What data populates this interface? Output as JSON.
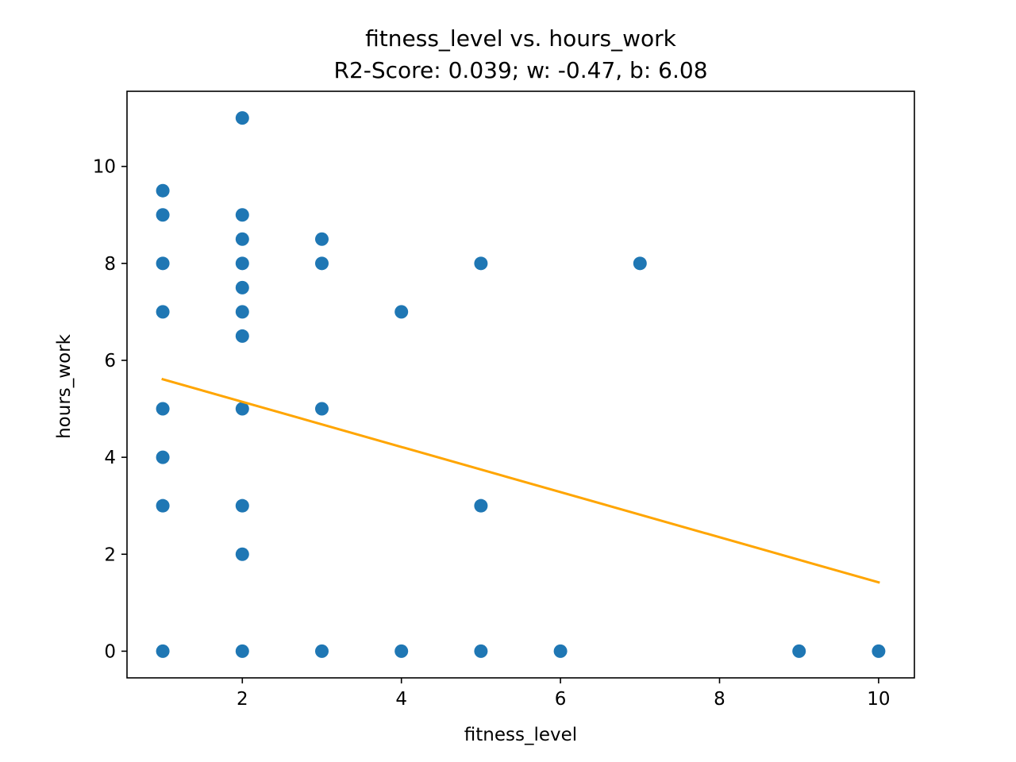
{
  "chart_data": {
    "type": "scatter",
    "title": "fitness_level vs. hours_work",
    "subtitle": "R2-Score: 0.039; w: -0.47, b: 6.08",
    "xlabel": "fitness_level",
    "ylabel": "hours_work",
    "xlim": [
      0.55,
      10.45
    ],
    "ylim": [
      -0.55,
      11.55
    ],
    "xticks": [
      2,
      4,
      6,
      8,
      10
    ],
    "yticks": [
      0,
      2,
      4,
      6,
      8,
      10
    ],
    "grid": false,
    "points": [
      {
        "x": 1,
        "y": 0
      },
      {
        "x": 1,
        "y": 3
      },
      {
        "x": 1,
        "y": 4
      },
      {
        "x": 1,
        "y": 5
      },
      {
        "x": 1,
        "y": 7
      },
      {
        "x": 1,
        "y": 8
      },
      {
        "x": 1,
        "y": 9
      },
      {
        "x": 1,
        "y": 9.5
      },
      {
        "x": 2,
        "y": 0
      },
      {
        "x": 2,
        "y": 2
      },
      {
        "x": 2,
        "y": 3
      },
      {
        "x": 2,
        "y": 5
      },
      {
        "x": 2,
        "y": 6.5
      },
      {
        "x": 2,
        "y": 7
      },
      {
        "x": 2,
        "y": 7.5
      },
      {
        "x": 2,
        "y": 8
      },
      {
        "x": 2,
        "y": 8.5
      },
      {
        "x": 2,
        "y": 9
      },
      {
        "x": 2,
        "y": 11
      },
      {
        "x": 3,
        "y": 0
      },
      {
        "x": 3,
        "y": 5
      },
      {
        "x": 3,
        "y": 8
      },
      {
        "x": 3,
        "y": 8.5
      },
      {
        "x": 4,
        "y": 0
      },
      {
        "x": 4,
        "y": 7
      },
      {
        "x": 5,
        "y": 0
      },
      {
        "x": 5,
        "y": 3
      },
      {
        "x": 5,
        "y": 8
      },
      {
        "x": 6,
        "y": 0
      },
      {
        "x": 7,
        "y": 8
      },
      {
        "x": 9,
        "y": 0
      },
      {
        "x": 10,
        "y": 0
      }
    ],
    "fit_line": {
      "x": [
        1,
        10
      ],
      "y": [
        5.61,
        1.42
      ]
    },
    "colors": {
      "points": "#1f77b4",
      "fit_line": "#ffa500",
      "axes": "#000000"
    }
  }
}
